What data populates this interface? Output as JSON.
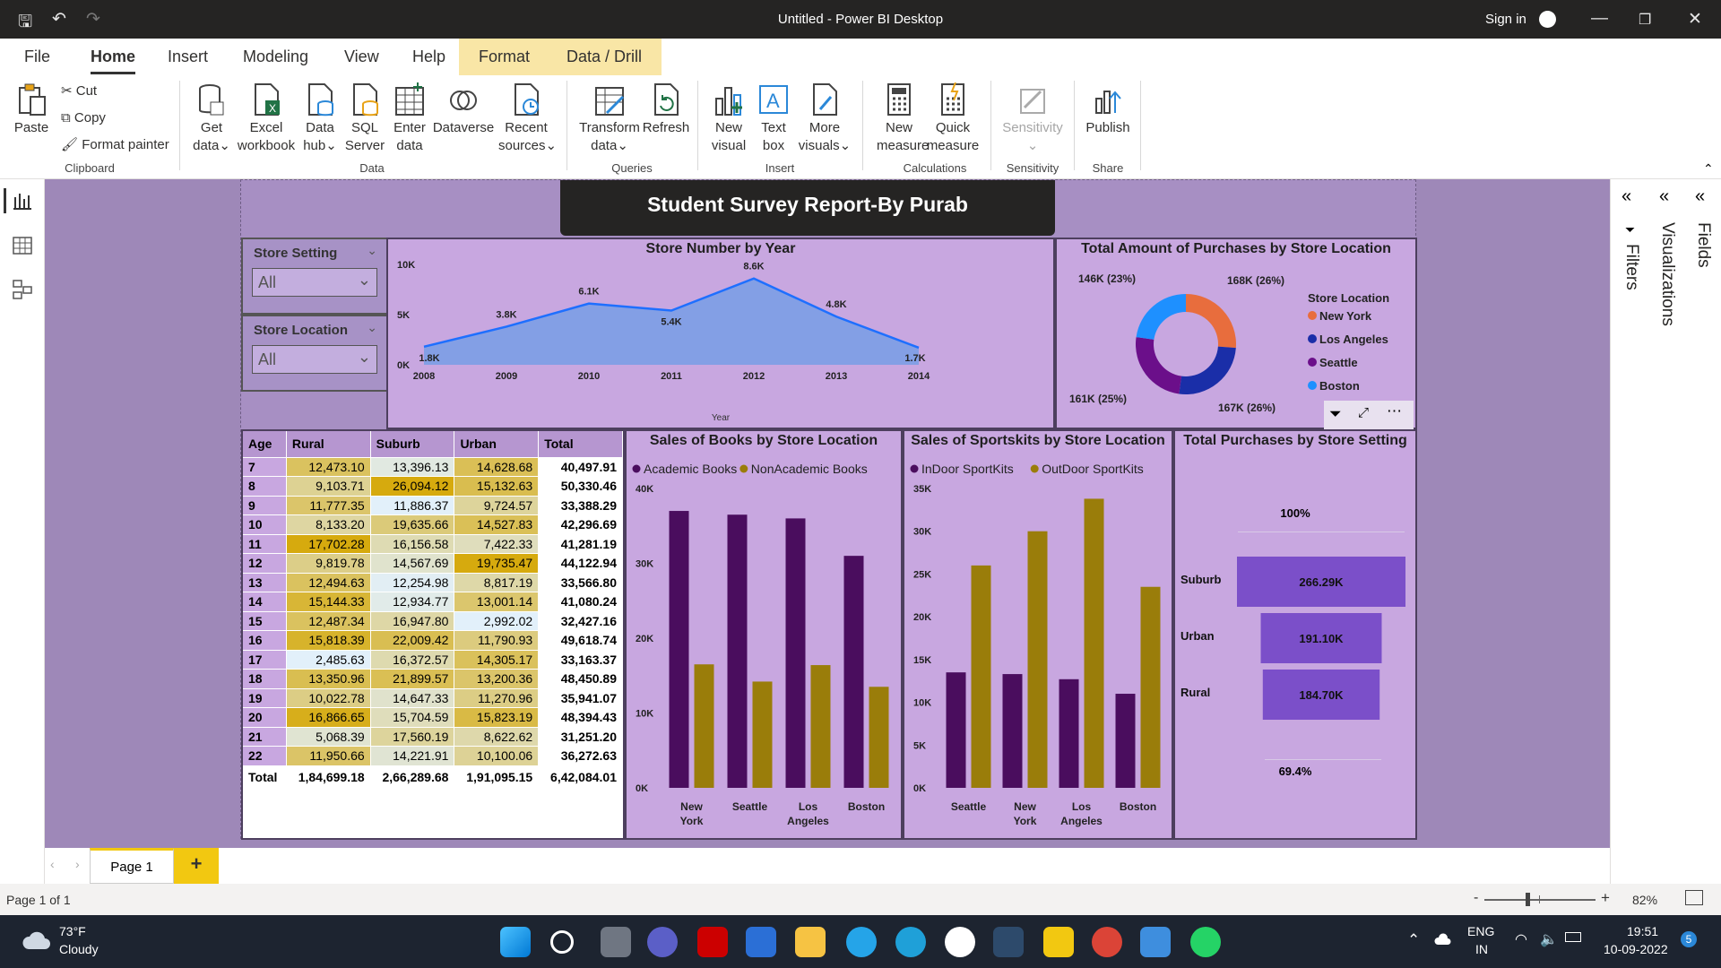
{
  "window": {
    "title": "Untitled - Power BI Desktop",
    "sign_in": "Sign in"
  },
  "tabs": [
    "File",
    "Home",
    "Insert",
    "Modeling",
    "View",
    "Help",
    "Format",
    "Data / Drill"
  ],
  "ribbon": {
    "clipboard": {
      "paste": "Paste",
      "cut": "Cut",
      "copy": "Copy",
      "format_painter": "Format painter",
      "group": "Clipboard"
    },
    "data": {
      "get_data": [
        "Get",
        "data"
      ],
      "excel": [
        "Excel",
        "workbook"
      ],
      "data_hub": [
        "Data",
        "hub"
      ],
      "sql": [
        "SQL",
        "Server"
      ],
      "enter_data": [
        "Enter",
        "data"
      ],
      "dataverse": "Dataverse",
      "recent": [
        "Recent",
        "sources"
      ],
      "group": "Data"
    },
    "queries": {
      "transform": [
        "Transform",
        "data"
      ],
      "refresh": "Refresh",
      "group": "Queries"
    },
    "insert": {
      "new_visual": [
        "New",
        "visual"
      ],
      "text_box": [
        "Text",
        "box"
      ],
      "more_visuals": [
        "More",
        "visuals"
      ],
      "group": "Insert"
    },
    "calculations": {
      "new_measure": [
        "New",
        "measure"
      ],
      "quick_measure": [
        "Quick",
        "measure"
      ],
      "group": "Calculations"
    },
    "sensitivity": {
      "label": "Sensitivity",
      "group": "Sensitivity"
    },
    "share": {
      "publish": "Publish",
      "group": "Share"
    }
  },
  "panes": {
    "filters": "Filters",
    "visualizations": "Visualizations",
    "fields": "Fields"
  },
  "report": {
    "title": "Student Survey Report-By Purab",
    "slicers": [
      {
        "label": "Store Setting",
        "value": "All"
      },
      {
        "label": "Store Location",
        "value": "All"
      }
    ],
    "matrix": {
      "headers": [
        "Age",
        "Rural",
        "Suburb",
        "Urban",
        "Total"
      ],
      "rows": [
        [
          "7",
          "12,473.10",
          "13,396.13",
          "14,628.68",
          "40,497.91"
        ],
        [
          "8",
          "9,103.71",
          "26,094.12",
          "15,132.63",
          "50,330.46"
        ],
        [
          "9",
          "11,777.35",
          "11,886.37",
          "9,724.57",
          "33,388.29"
        ],
        [
          "10",
          "8,133.20",
          "19,635.66",
          "14,527.83",
          "42,296.69"
        ],
        [
          "11",
          "17,702.28",
          "16,156.58",
          "7,422.33",
          "41,281.19"
        ],
        [
          "12",
          "9,819.78",
          "14,567.69",
          "19,735.47",
          "44,122.94"
        ],
        [
          "13",
          "12,494.63",
          "12,254.98",
          "8,817.19",
          "33,566.80"
        ],
        [
          "14",
          "15,144.33",
          "12,934.77",
          "13,001.14",
          "41,080.24"
        ],
        [
          "15",
          "12,487.34",
          "16,947.80",
          "2,992.02",
          "32,427.16"
        ],
        [
          "16",
          "15,818.39",
          "22,009.42",
          "11,790.93",
          "49,618.74"
        ],
        [
          "17",
          "2,485.63",
          "16,372.57",
          "14,305.17",
          "33,163.37"
        ],
        [
          "18",
          "13,350.96",
          "21,899.57",
          "13,200.36",
          "48,450.89"
        ],
        [
          "19",
          "10,022.78",
          "14,647.33",
          "11,270.96",
          "35,941.07"
        ],
        [
          "20",
          "16,866.65",
          "15,704.59",
          "15,823.19",
          "48,394.43"
        ],
        [
          "21",
          "5,068.39",
          "17,560.19",
          "8,622.62",
          "31,251.20"
        ],
        [
          "22",
          "11,950.66",
          "14,221.91",
          "10,100.06",
          "36,272.63"
        ]
      ],
      "total": [
        "Total",
        "1,84,699.18",
        "2,66,289.68",
        "1,91,095.15",
        "6,42,084.01"
      ]
    },
    "funnel": {
      "pct_top": "100%",
      "pct_bottom": "69.4%"
    }
  },
  "chart_data": [
    {
      "type": "area",
      "title": "Store Number by Year",
      "xlabel": "Year",
      "x": [
        2008,
        2009,
        2010,
        2011,
        2012,
        2013,
        2014
      ],
      "values": [
        1.8,
        3.8,
        6.1,
        5.4,
        8.6,
        4.8,
        1.7
      ],
      "data_labels": [
        "1.8K",
        "3.8K",
        "6.1K",
        "5.4K",
        "8.6K",
        "4.8K",
        "1.7K"
      ],
      "y_ticks": [
        "10K",
        "5K",
        "0K"
      ],
      "ylim": [
        0,
        10
      ],
      "color": "#7b9fe6"
    },
    {
      "type": "pie",
      "title": "Total Amount of Purchases by Store Location",
      "legend_title": "Store Location",
      "categories": [
        "New York",
        "Los Angeles",
        "Seattle",
        "Boston"
      ],
      "values": [
        168,
        167,
        161,
        146
      ],
      "data_labels": [
        "168K (26%)",
        "167K (26%)",
        "161K (25%)",
        "146K (23%)"
      ],
      "colors": [
        "#e86d3d",
        "#1a2ea8",
        "#6b0f8a",
        "#1e90ff"
      ],
      "legend": "right"
    },
    {
      "type": "bar",
      "title": "Sales of Books by Store Location",
      "categories": [
        "New York",
        "Seattle",
        "Los Angeles",
        "Boston"
      ],
      "series": [
        {
          "name": "Academic Books",
          "values": [
            37000,
            36500,
            36000,
            31000
          ],
          "color": "#4a0d5e"
        },
        {
          "name": "NonAcademic Books",
          "values": [
            16500,
            14200,
            16400,
            13500
          ],
          "color": "#9a7d0a"
        }
      ],
      "y_ticks": [
        "40K",
        "30K",
        "20K",
        "10K",
        "0K"
      ],
      "ylim": [
        0,
        40000
      ]
    },
    {
      "type": "bar",
      "title": "Sales of Sportskits by Store Location",
      "categories": [
        "Seattle",
        "New York",
        "Los Angeles",
        "Boston"
      ],
      "series": [
        {
          "name": "InDoor SportKits",
          "values": [
            13500,
            13300,
            12700,
            11000
          ],
          "color": "#4a0d5e"
        },
        {
          "name": "OutDoor SportKits",
          "values": [
            26000,
            30000,
            33800,
            23500
          ],
          "color": "#9a7d0a"
        }
      ],
      "y_ticks": [
        "35K",
        "30K",
        "25K",
        "20K",
        "15K",
        "10K",
        "5K",
        "0K"
      ],
      "ylim": [
        0,
        35000
      ]
    },
    {
      "type": "bar",
      "title": "Total Purchases by Store Setting",
      "categories": [
        "Suburb",
        "Urban",
        "Rural"
      ],
      "values": [
        266.29,
        191.1,
        184.7
      ],
      "data_labels": [
        "266.29K",
        "191.10K",
        "184.70K"
      ],
      "color": "#7b4fc9"
    }
  ],
  "pagebar": {
    "page_tab": "Page 1",
    "add": "+"
  },
  "status": {
    "page": "Page 1 of 1",
    "zoom": "82%",
    "zoom_minus": "-",
    "zoom_plus": "+"
  },
  "taskbar": {
    "temp": "73°F",
    "weather": "Cloudy",
    "lang": "ENG",
    "region": "IN",
    "time": "19:51",
    "date": "10-09-2022",
    "notif": "5"
  }
}
